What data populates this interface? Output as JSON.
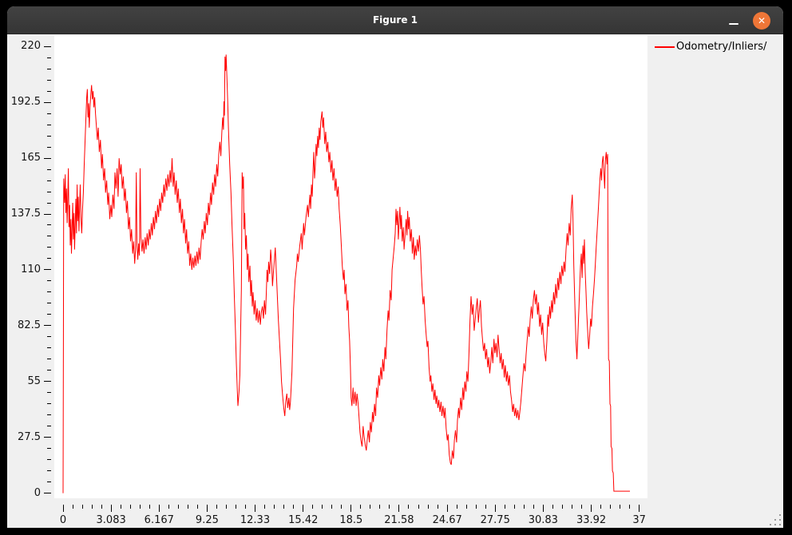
{
  "window": {
    "title": "Figure 1",
    "close_glyph": "✕",
    "titlebar_color": "#3a3a3a",
    "close_button_color": "#ef7637"
  },
  "legend": {
    "label": "Odometry/Inliers/",
    "line_color": "#ff0000"
  },
  "colors": {
    "figure_bg": "#f0f0f0",
    "plot_bg": "#ffffff",
    "line": "#ff0000",
    "tick": "#000000"
  },
  "chart_data": {
    "type": "line",
    "title": "",
    "xlabel": "",
    "ylabel": "",
    "grid": false,
    "legend_position": "upper-right-outside",
    "xlim": [
      -0.564,
      37.53
    ],
    "ylim": [
      -2.5,
      225.2
    ],
    "x_ticks": [
      0,
      3.083,
      6.167,
      9.25,
      12.33,
      15.42,
      18.5,
      21.58,
      24.67,
      27.75,
      30.83,
      33.92,
      37
    ],
    "x_tick_labels": [
      "0",
      "3.083",
      "6.167",
      "9.25",
      "12.33",
      "15.42",
      "18.5",
      "21.58",
      "24.67",
      "27.75",
      "30.83",
      "33.92",
      "37"
    ],
    "x_tick_step": 3.08333,
    "x_minor_per_major": 5,
    "y_ticks": [
      0,
      27.5,
      55,
      82.5,
      110,
      137.5,
      165,
      192.5,
      220
    ],
    "y_tick_labels": [
      "0",
      "27.5",
      "55",
      "82.5",
      "110",
      "137.5",
      "165",
      "192.5",
      "220"
    ],
    "y_tick_step": 27.5,
    "y_minor_per_major": 5,
    "series": [
      {
        "name": "Odometry/Inliers/",
        "color": "#ff0000",
        "x": [
          0,
          0.02,
          0.04,
          0.1,
          0.14,
          0.18,
          0.22,
          0.26,
          0.3,
          0.34,
          0.38,
          0.42,
          0.46,
          0.5,
          0.54,
          0.58,
          0.62,
          0.66,
          0.7,
          0.74,
          0.78,
          0.82,
          0.86,
          0.9,
          0.94,
          0.98,
          1.02,
          1.06,
          1.1,
          1.15,
          1.2,
          1.25,
          1.3,
          1.36,
          1.42,
          1.48,
          1.52,
          1.56,
          1.6,
          1.64,
          1.68,
          1.73,
          1.78,
          1.83,
          1.88,
          1.93,
          1.98,
          2.03,
          2.08,
          2.13,
          2.2,
          2.26,
          2.33,
          2.4,
          2.47,
          2.53,
          2.6,
          2.67,
          2.73,
          2.8,
          2.87,
          2.93,
          3.0,
          3.07,
          3.13,
          3.2,
          3.27,
          3.33,
          3.4,
          3.47,
          3.53,
          3.6,
          3.67,
          3.73,
          3.8,
          3.87,
          3.93,
          4.0,
          4.07,
          4.13,
          4.2,
          4.27,
          4.33,
          4.4,
          4.47,
          4.53,
          4.6,
          4.65,
          4.7,
          4.75,
          4.8,
          4.85,
          4.9,
          4.95,
          5.0,
          5.07,
          5.13,
          5.2,
          5.27,
          5.33,
          5.4,
          5.47,
          5.53,
          5.6,
          5.67,
          5.73,
          5.8,
          5.87,
          5.93,
          6.0,
          6.07,
          6.13,
          6.2,
          6.27,
          6.33,
          6.4,
          6.47,
          6.53,
          6.6,
          6.67,
          6.73,
          6.8,
          6.87,
          6.93,
          7.0,
          7.07,
          7.13,
          7.2,
          7.27,
          7.33,
          7.4,
          7.47,
          7.53,
          7.6,
          7.67,
          7.73,
          7.8,
          7.87,
          7.93,
          8.0,
          8.07,
          8.13,
          8.2,
          8.27,
          8.33,
          8.4,
          8.47,
          8.53,
          8.6,
          8.67,
          8.73,
          8.8,
          8.87,
          8.93,
          9.0,
          9.07,
          9.13,
          9.2,
          9.27,
          9.33,
          9.4,
          9.47,
          9.53,
          9.6,
          9.67,
          9.73,
          9.8,
          9.87,
          9.93,
          10.0,
          10.07,
          10.13,
          10.2,
          10.25,
          10.3,
          10.33,
          10.36,
          10.4,
          10.44,
          10.47,
          10.52,
          10.57,
          10.62,
          10.7,
          10.78,
          10.85,
          10.93,
          11.0,
          11.07,
          11.13,
          11.18,
          11.23,
          11.3,
          11.35,
          11.4,
          11.45,
          11.5,
          11.54,
          11.58,
          11.62,
          11.67,
          11.72,
          11.77,
          11.83,
          11.88,
          11.93,
          12.0,
          12.05,
          12.1,
          12.15,
          12.2,
          12.27,
          12.33,
          12.4,
          12.47,
          12.53,
          12.6,
          12.67,
          12.73,
          12.8,
          12.87,
          12.93,
          13.0,
          13.05,
          13.1,
          13.15,
          13.2,
          13.27,
          13.33,
          13.4,
          13.45,
          13.5,
          13.57,
          13.63,
          13.7,
          13.77,
          13.83,
          13.9,
          13.97,
          14.03,
          14.1,
          14.17,
          14.24,
          14.3,
          14.37,
          14.43,
          14.5,
          14.55,
          14.6,
          14.7,
          14.8,
          14.9,
          15.0,
          15.05,
          15.1,
          15.2,
          15.3,
          15.35,
          15.45,
          15.5,
          15.6,
          15.7,
          15.75,
          15.85,
          15.9,
          15.95,
          16.0,
          16.05,
          16.1,
          16.15,
          16.2,
          16.25,
          16.3,
          16.35,
          16.4,
          16.45,
          16.5,
          16.55,
          16.63,
          16.68,
          16.73,
          16.8,
          16.87,
          16.93,
          17.0,
          17.07,
          17.13,
          17.2,
          17.27,
          17.33,
          17.4,
          17.47,
          17.53,
          17.6,
          17.67,
          17.73,
          17.8,
          17.87,
          17.93,
          18.0,
          18.05,
          18.1,
          18.17,
          18.23,
          18.3,
          18.35,
          18.4,
          18.45,
          18.5,
          18.55,
          18.62,
          18.68,
          18.75,
          18.82,
          18.88,
          18.95,
          19.0,
          19.07,
          19.13,
          19.2,
          19.27,
          19.33,
          19.4,
          19.47,
          19.53,
          19.6,
          19.67,
          19.73,
          19.8,
          19.87,
          19.93,
          20.0,
          20.07,
          20.13,
          20.2,
          20.27,
          20.33,
          20.4,
          20.47,
          20.53,
          20.6,
          20.67,
          20.73,
          20.8,
          20.87,
          20.93,
          21.0,
          21.07,
          21.13,
          21.2,
          21.27,
          21.33,
          21.38,
          21.43,
          21.48,
          21.53,
          21.58,
          21.63,
          21.68,
          21.73,
          21.78,
          21.85,
          21.9,
          21.97,
          22.03,
          22.08,
          22.13,
          22.18,
          22.23,
          22.3,
          22.37,
          22.43,
          22.5,
          22.55,
          22.62,
          22.68,
          22.75,
          22.82,
          22.88,
          22.95,
          23.0,
          23.05,
          23.12,
          23.18,
          23.25,
          23.32,
          23.38,
          23.43,
          23.5,
          23.57,
          23.62,
          23.68,
          23.75,
          23.82,
          23.88,
          23.95,
          24.0,
          24.07,
          24.13,
          24.2,
          24.27,
          24.33,
          24.4,
          24.47,
          24.53,
          24.6,
          24.67,
          24.73,
          24.8,
          24.87,
          24.93,
          25.0,
          25.07,
          25.13,
          25.2,
          25.27,
          25.33,
          25.4,
          25.45,
          25.53,
          25.6,
          25.67,
          25.73,
          25.8,
          25.87,
          25.93,
          26.0,
          26.07,
          26.13,
          26.2,
          26.27,
          26.33,
          26.4,
          26.47,
          26.53,
          26.6,
          26.67,
          26.73,
          26.8,
          26.87,
          26.93,
          27.0,
          27.07,
          27.13,
          27.2,
          27.27,
          27.33,
          27.4,
          27.47,
          27.53,
          27.6,
          27.67,
          27.73,
          27.8,
          27.87,
          27.93,
          28.0,
          28.07,
          28.13,
          28.2,
          28.27,
          28.33,
          28.4,
          28.47,
          28.53,
          28.6,
          28.67,
          28.73,
          28.8,
          28.87,
          28.93,
          29.0,
          29.07,
          29.13,
          29.2,
          29.27,
          29.33,
          29.4,
          29.47,
          29.53,
          29.6,
          29.67,
          29.73,
          29.8,
          29.87,
          29.93,
          30.0,
          30.07,
          30.13,
          30.2,
          30.27,
          30.33,
          30.4,
          30.47,
          30.53,
          30.6,
          30.67,
          30.73,
          30.8,
          30.87,
          30.93,
          31.0,
          31.07,
          31.13,
          31.18,
          31.25,
          31.3,
          31.37,
          31.43,
          31.5,
          31.57,
          31.63,
          31.7,
          31.77,
          31.83,
          31.9,
          31.97,
          32.03,
          32.1,
          32.17,
          32.23,
          32.3,
          32.37,
          32.43,
          32.5,
          32.57,
          32.63,
          32.7,
          32.75,
          32.8,
          32.87,
          32.93,
          33.0,
          33.07,
          33.13,
          33.18,
          33.23,
          33.28,
          33.33,
          33.38,
          33.43,
          33.48,
          33.53,
          33.58,
          33.63,
          33.68,
          33.75,
          33.82,
          33.88,
          33.93,
          34.0,
          34.07,
          34.13,
          34.18,
          34.23,
          34.28,
          34.33,
          34.38,
          34.43,
          34.48,
          34.53,
          34.58,
          34.63,
          34.68,
          34.73,
          34.78,
          34.83,
          34.88,
          34.93,
          34.97,
          35.0,
          35.03,
          35.08,
          35.12,
          35.16,
          35.19,
          35.25,
          35.28,
          35.33,
          35.37,
          35.6,
          36.4
        ],
        "y": [
          0,
          72,
          155,
          143,
          157,
          138,
          150,
          133,
          146,
          160,
          131,
          142,
          122,
          135,
          118,
          130,
          143,
          125,
          138,
          120,
          132,
          145,
          128,
          152,
          134,
          146,
          129,
          141,
          152,
          136,
          128,
          140,
          148,
          162,
          175,
          188,
          195,
          199,
          185,
          192,
          180,
          190,
          196,
          201,
          194,
          198,
          190,
          195,
          187,
          182,
          174,
          180,
          168,
          174,
          160,
          167,
          154,
          160,
          148,
          154,
          142,
          148,
          135,
          142,
          136,
          147,
          140,
          158,
          150,
          160,
          146,
          165,
          157,
          162,
          150,
          156,
          144,
          150,
          138,
          144,
          130,
          136,
          124,
          130,
          118,
          124,
          113,
          120,
          158,
          122,
          115,
          123,
          117,
          160,
          126,
          119,
          125,
          118,
          126,
          120,
          128,
          122,
          130,
          125,
          133,
          127,
          136,
          130,
          139,
          133,
          142,
          136,
          145,
          139,
          148,
          143,
          152,
          146,
          155,
          149,
          157,
          151,
          159,
          153,
          165,
          151,
          158,
          147,
          154,
          143,
          150,
          138,
          145,
          133,
          140,
          128,
          135,
          123,
          130,
          118,
          124,
          112,
          118,
          110,
          116,
          111,
          117,
          112,
          119,
          113,
          121,
          115,
          124,
          130,
          125,
          134,
          128,
          138,
          132,
          143,
          137,
          148,
          142,
          153,
          147,
          157,
          151,
          162,
          156,
          167,
          173,
          166,
          178,
          185,
          179,
          193,
          186,
          215,
          208,
          216,
          205,
          193,
          180,
          162,
          148,
          132,
          115,
          97,
          80,
          63,
          52,
          43,
          50,
          58,
          80,
          100,
          158,
          150,
          156,
          130,
          138,
          120,
          127,
          110,
          118,
          104,
          112,
          97,
          105,
          92,
          99,
          88,
          95,
          85,
          91,
          84,
          90,
          83,
          89,
          92,
          86,
          95,
          88,
          98,
          110,
          104,
          114,
          108,
          120,
          112,
          102,
          108,
          115,
          121,
          108,
          95,
          85,
          75,
          65,
          55,
          48,
          42,
          38,
          45,
          49,
          42,
          47,
          41,
          45,
          60,
          91,
          105,
          112,
          118,
          114,
          122,
          128,
          120,
          133,
          127,
          136,
          142,
          136,
          147,
          140,
          152,
          146,
          158,
          168,
          155,
          162,
          172,
          166,
          176,
          170,
          180,
          174,
          183,
          188,
          180,
          185,
          172,
          178,
          168,
          173,
          163,
          168,
          158,
          164,
          154,
          160,
          149,
          155,
          146,
          151,
          140,
          132,
          122,
          112,
          105,
          110,
          98,
          103,
          90,
          95,
          82,
          75,
          62,
          47,
          43,
          52,
          44,
          50,
          43,
          49,
          44,
          38,
          30,
          26,
          23,
          33,
          28,
          24,
          21,
          26,
          31,
          25,
          35,
          30,
          40,
          35,
          44,
          38,
          52,
          47,
          58,
          53,
          62,
          56,
          66,
          60,
          72,
          66,
          80,
          90,
          85,
          100,
          95,
          110,
          116,
          122,
          128,
          140,
          132,
          139,
          125,
          133,
          141,
          130,
          137,
          124,
          131,
          120,
          128,
          135,
          127,
          139,
          130,
          136,
          124,
          130,
          118,
          126,
          115,
          122,
          117,
          125,
          119,
          127,
          120,
          110,
          102,
          93,
          97,
          85,
          78,
          72,
          75,
          62,
          55,
          58,
          50,
          54,
          46,
          51,
          44,
          48,
          42,
          46,
          40,
          45,
          38,
          43,
          37,
          42,
          32,
          26,
          29,
          19,
          15,
          14,
          21,
          17,
          26,
          31,
          25,
          36,
          42,
          37,
          47,
          41,
          52,
          46,
          55,
          50,
          60,
          55,
          70,
          85,
          97,
          88,
          93,
          80,
          86,
          91,
          96,
          84,
          90,
          95,
          82,
          76,
          70,
          74,
          66,
          71,
          62,
          67,
          59,
          65,
          72,
          64,
          76,
          69,
          74,
          67,
          78,
          71,
          64,
          69,
          61,
          66,
          57,
          63,
          55,
          60,
          53,
          58,
          50,
          46,
          40,
          44,
          38,
          42,
          37,
          41,
          36,
          40,
          45,
          52,
          58,
          64,
          60,
          68,
          75,
          82,
          77,
          86,
          92,
          86,
          95,
          100,
          93,
          98,
          88,
          94,
          82,
          88,
          78,
          84,
          74,
          69,
          65,
          75,
          88,
          82,
          92,
          86,
          95,
          89,
          99,
          93,
          103,
          96,
          106,
          100,
          109,
          103,
          112,
          107,
          114,
          109,
          120,
          128,
          122,
          133,
          127,
          140,
          147,
          133,
          112,
          92,
          76,
          66,
          80,
          92,
          103,
          112,
          118,
          106,
          122,
          113,
          125,
          109,
          99,
          89,
          81,
          71,
          78,
          86,
          82,
          92,
          99,
          106,
          113,
          120,
          127,
          134,
          141,
          148,
          155,
          160,
          154,
          163,
          166,
          158,
          150,
          164,
          168,
          162,
          167,
          100,
          66,
          65,
          44,
          43,
          23,
          22,
          11,
          10,
          1,
          1,
          1
        ]
      }
    ]
  }
}
